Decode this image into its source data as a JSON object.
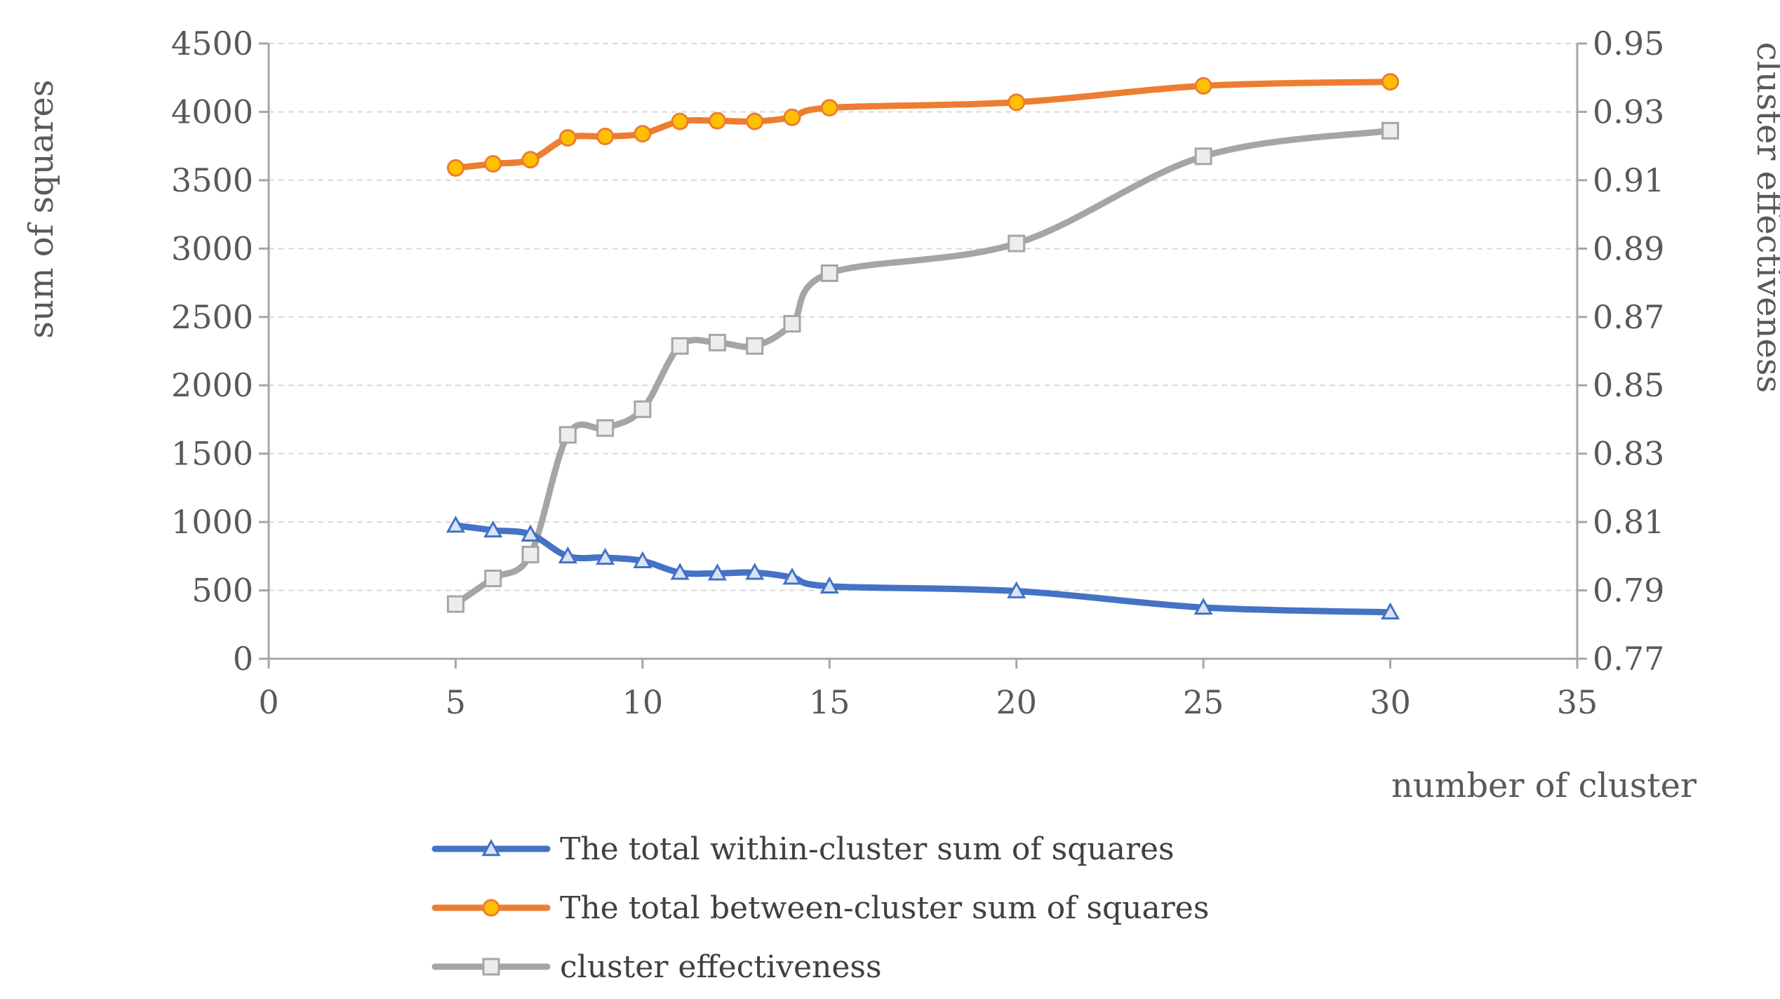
{
  "chart_data": {
    "type": "line",
    "title": "",
    "xlabel": "number of cluster",
    "ylabel_left": "sum of squares",
    "ylabel_right": "cluster effectiveness",
    "xlim": [
      0,
      35
    ],
    "x_ticks": [
      "0",
      "5",
      "10",
      "15",
      "20",
      "25",
      "30",
      "35"
    ],
    "ylim_left": [
      0,
      4500
    ],
    "y_ticks_left": [
      "0",
      "500",
      "1000",
      "1500",
      "2000",
      "2500",
      "3000",
      "3500",
      "4000",
      "4500"
    ],
    "ylim_right": [
      0.77,
      0.95
    ],
    "y_ticks_right": [
      "0.77",
      "0.79",
      "0.81",
      "0.83",
      "0.85",
      "0.87",
      "0.89",
      "0.91",
      "0.93",
      "0.95"
    ],
    "grid": true,
    "legend_position": "bottom-center",
    "x": [
      5,
      6,
      7,
      8,
      9,
      10,
      11,
      12,
      13,
      14,
      15,
      20,
      25,
      30
    ],
    "series": [
      {
        "name": "The total within-cluster sum of squares",
        "axis": "left",
        "color": "#4472C4",
        "marker": "triangle",
        "values": [
          975,
          940,
          910,
          750,
          740,
          715,
          630,
          625,
          630,
          595,
          530,
          495,
          375,
          340
        ]
      },
      {
        "name": "The total between-cluster sum of squares",
        "axis": "left",
        "color": "#ED7D31",
        "marker": "circle",
        "values": [
          3590,
          3620,
          3650,
          3810,
          3820,
          3840,
          3930,
          3935,
          3930,
          3960,
          4030,
          4070,
          4190,
          4220
        ]
      },
      {
        "name": "cluster effectiveness",
        "axis": "right",
        "color": "#A5A5A5",
        "marker": "square",
        "values": [
          0.786,
          0.7935,
          0.8005,
          0.8355,
          0.8375,
          0.843,
          0.8615,
          0.8625,
          0.8615,
          0.868,
          0.8828,
          0.8915,
          0.917,
          0.9245
        ]
      }
    ]
  }
}
